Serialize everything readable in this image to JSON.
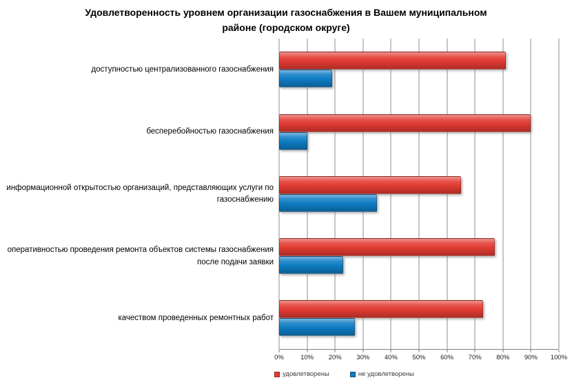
{
  "chart_data": {
    "type": "bar",
    "orientation": "horizontal",
    "title": "Удовлетворенность уровнем организации газоснабжения в Вашем муниципальном районе (городском округе)",
    "categories": [
      "доступностью централизованного газоснабжения",
      "бесперебойностью газоснабжения",
      "информационной открытостью организаций, представляющих услуги по газоснабжению",
      "оперативностью проведения ремонта объектов системы газоснабжения после подачи заявки",
      "качеством проведенных ремонтных работ"
    ],
    "series": [
      {
        "name": "удовлетворены",
        "color": "#e33b32",
        "values": [
          81,
          90,
          65,
          77,
          73
        ]
      },
      {
        "name": "не удовлетворены",
        "color": "#0e7dc4",
        "values": [
          19,
          10,
          35,
          23,
          27
        ]
      }
    ],
    "xlabel": "",
    "ylabel": "",
    "xlim": [
      0,
      100
    ],
    "x_ticks": [
      "0%",
      "10%",
      "20%",
      "30%",
      "40%",
      "50%",
      "60%",
      "70%",
      "80%",
      "90%",
      "100%"
    ],
    "grid": true,
    "legend_position": "bottom",
    "gridline_color": "#8c8c8c"
  }
}
